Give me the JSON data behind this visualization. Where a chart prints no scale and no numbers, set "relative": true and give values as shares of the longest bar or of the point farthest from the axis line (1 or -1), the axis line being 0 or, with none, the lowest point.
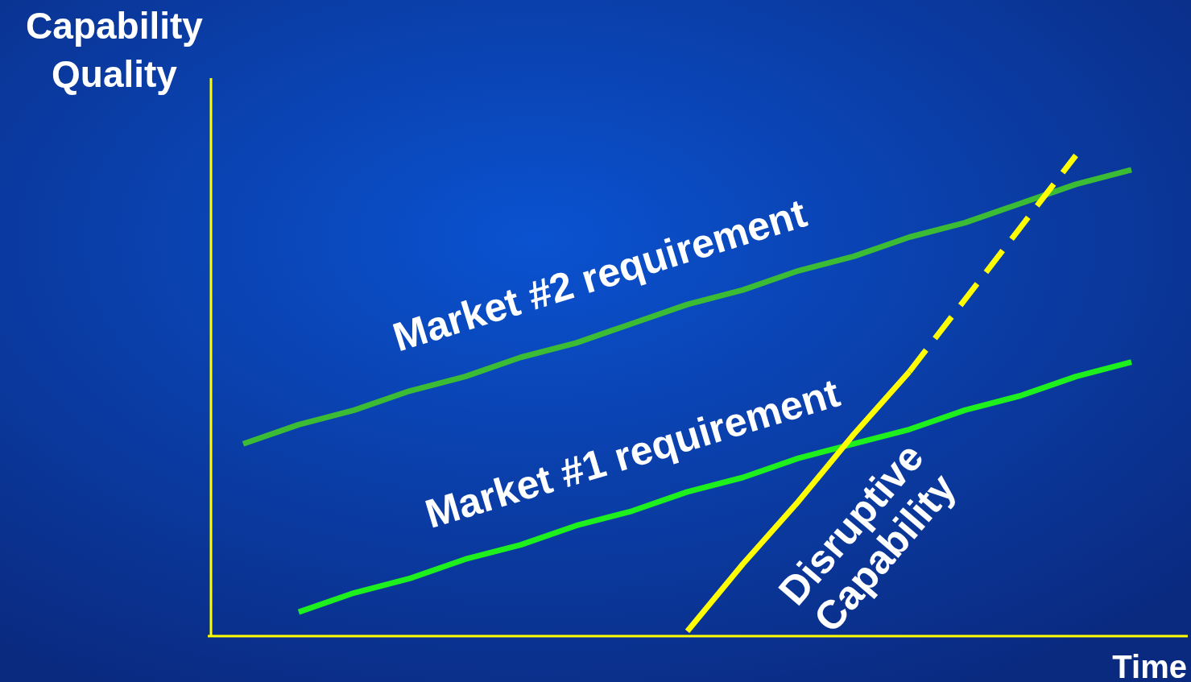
{
  "chart_data": {
    "type": "line",
    "relative": true,
    "xlabel": "Time",
    "ylabel": "Capability\nQuality",
    "categories": [
      null,
      null,
      null,
      null,
      null,
      null,
      null,
      null,
      null,
      null,
      null,
      null,
      null,
      null,
      null,
      null,
      null
    ],
    "series": [
      {
        "name": "Market #2 requirement",
        "color": "#3cbc34",
        "values": [
          0.4,
          0.44,
          0.47,
          0.51,
          0.54,
          0.58,
          0.61,
          0.65,
          0.69,
          0.72,
          0.76,
          0.79,
          0.83,
          0.86,
          0.9,
          0.94,
          0.97
        ]
      },
      {
        "name": "Market #1 requirement",
        "color": "#1ef01e",
        "values": [
          null,
          0.05,
          0.09,
          0.12,
          0.16,
          0.19,
          0.23,
          0.26,
          0.3,
          0.33,
          0.37,
          0.4,
          0.43,
          0.47,
          0.5,
          0.54,
          0.57
        ]
      },
      {
        "name": "Disruptive\nCapability",
        "color": "#ffff00",
        "values": [
          null,
          null,
          null,
          null,
          null,
          null,
          null,
          null,
          0.01,
          0.15,
          0.28,
          0.42,
          0.55,
          null,
          null,
          null,
          null
        ],
        "line_style": "solid"
      },
      {
        "color": "#ffff00",
        "values": [
          null,
          null,
          null,
          null,
          null,
          null,
          null,
          null,
          null,
          null,
          null,
          null,
          0.55,
          0.7,
          0.85,
          1.0,
          null
        ],
        "line_style": "dashed"
      }
    ]
  }
}
